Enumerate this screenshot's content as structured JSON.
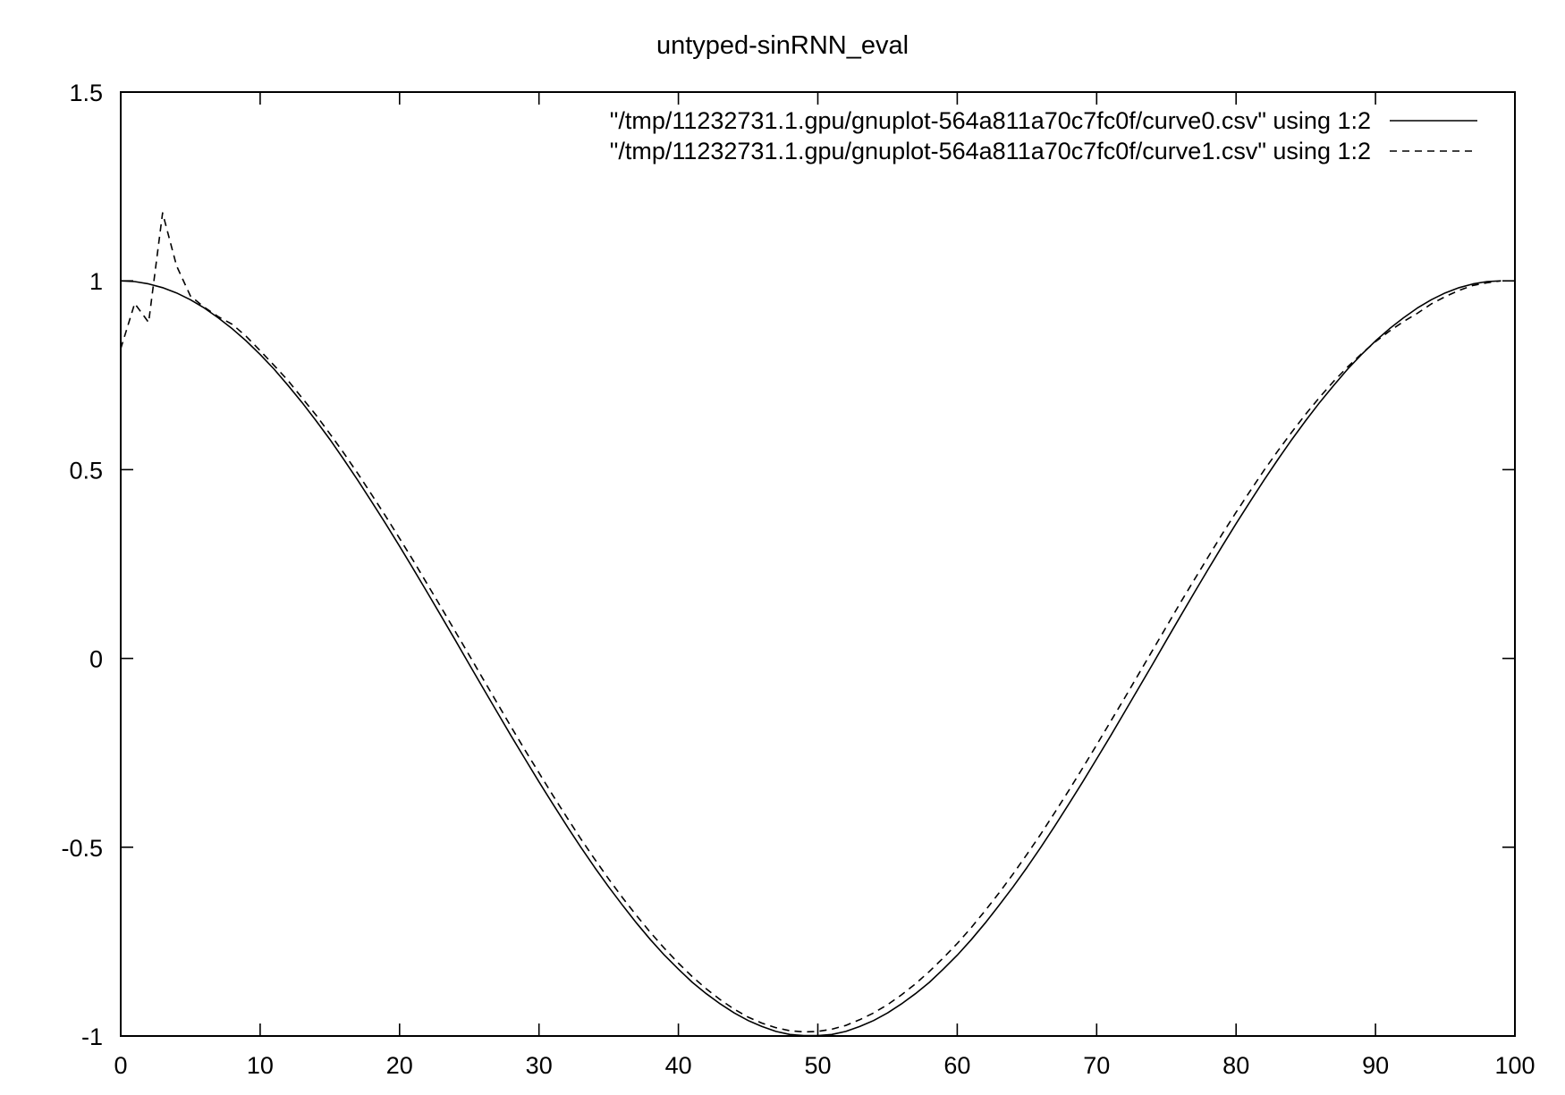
{
  "chart_data": {
    "type": "line",
    "title": "untyped-sinRNN_eval",
    "xlabel": "",
    "ylabel": "",
    "xlim": [
      0,
      100
    ],
    "ylim": [
      -1,
      1.5
    ],
    "xticks": [
      "0",
      "10",
      "20",
      "30",
      "40",
      "50",
      "60",
      "70",
      "80",
      "90",
      "100"
    ],
    "yticks": [
      "-1",
      "-0.5",
      "0",
      "0.5",
      "1",
      "1.5"
    ],
    "grid": false,
    "legend_position": "top-right",
    "series": [
      {
        "name": "\"/tmp/11232731.1.gpu/gnuplot-564a811a70c7fc0f/curve0.csv\" using 1:2",
        "style": "solid",
        "formula_points": "cos(2*pi*x/99) sampled at x = 0..99",
        "x": [
          0,
          1,
          2,
          3,
          4,
          5,
          6,
          7,
          8,
          9,
          10,
          11,
          12,
          13,
          14,
          15,
          16,
          17,
          18,
          19,
          20,
          21,
          22,
          23,
          24,
          25,
          26,
          27,
          28,
          29,
          30,
          31,
          32,
          33,
          34,
          35,
          36,
          37,
          38,
          39,
          40,
          41,
          42,
          43,
          44,
          45,
          46,
          47,
          48,
          49,
          50,
          51,
          52,
          53,
          54,
          55,
          56,
          57,
          58,
          59,
          60,
          61,
          62,
          63,
          64,
          65,
          66,
          67,
          68,
          69,
          70,
          71,
          72,
          73,
          74,
          75,
          76,
          77,
          78,
          79,
          80,
          81,
          82,
          83,
          84,
          85,
          86,
          87,
          88,
          89,
          90,
          91,
          92,
          93,
          94,
          95,
          96,
          97,
          98,
          99
        ],
        "values": [
          1.0,
          0.998,
          0.992,
          0.982,
          0.968,
          0.95,
          0.928,
          0.902,
          0.873,
          0.841,
          0.805,
          0.766,
          0.723,
          0.678,
          0.63,
          0.58,
          0.527,
          0.472,
          0.415,
          0.357,
          0.297,
          0.236,
          0.174,
          0.111,
          0.048,
          -0.016,
          -0.079,
          -0.142,
          -0.205,
          -0.266,
          -0.327,
          -0.386,
          -0.444,
          -0.5,
          -0.554,
          -0.605,
          -0.654,
          -0.701,
          -0.745,
          -0.786,
          -0.823,
          -0.858,
          -0.888,
          -0.915,
          -0.939,
          -0.959,
          -0.975,
          -0.988,
          -0.996,
          -0.999,
          -0.999,
          -0.996,
          -0.988,
          -0.975,
          -0.959,
          -0.939,
          -0.915,
          -0.888,
          -0.858,
          -0.823,
          -0.786,
          -0.745,
          -0.701,
          -0.654,
          -0.605,
          -0.554,
          -0.5,
          -0.444,
          -0.386,
          -0.327,
          -0.266,
          -0.205,
          -0.142,
          -0.079,
          -0.016,
          0.048,
          0.111,
          0.174,
          0.236,
          0.297,
          0.357,
          0.415,
          0.472,
          0.527,
          0.58,
          0.63,
          0.678,
          0.723,
          0.766,
          0.805,
          0.841,
          0.873,
          0.902,
          0.928,
          0.95,
          0.968,
          0.982,
          0.992,
          0.998,
          1.0
        ]
      },
      {
        "name": "\"/tmp/11232731.1.gpu/gnuplot-564a811a70c7fc0f/curve1.csv\" using 1:2",
        "style": "dashed",
        "x": [
          0,
          1,
          2,
          3,
          4,
          5,
          6,
          7,
          8,
          9,
          10,
          11,
          12,
          13,
          14,
          15,
          16,
          17,
          18,
          19,
          20,
          21,
          22,
          23,
          24,
          25,
          26,
          27,
          28,
          29,
          30,
          31,
          32,
          33,
          34,
          35,
          36,
          37,
          38,
          39,
          40,
          41,
          42,
          43,
          44,
          45,
          46,
          47,
          48,
          49,
          50,
          51,
          52,
          53,
          54,
          55,
          56,
          57,
          58,
          59,
          60,
          61,
          62,
          63,
          64,
          65,
          66,
          67,
          68,
          69,
          70,
          71,
          72,
          73,
          74,
          75,
          76,
          77,
          78,
          79,
          80,
          81,
          82,
          83,
          84,
          85,
          86,
          87,
          88,
          89,
          90,
          91,
          92,
          93,
          94,
          95,
          96,
          97,
          98,
          99
        ],
        "values": [
          0.82,
          0.94,
          0.89,
          1.18,
          1.04,
          0.96,
          0.93,
          0.905,
          0.885,
          0.853,
          0.815,
          0.776,
          0.736,
          0.69,
          0.645,
          0.595,
          0.544,
          0.49,
          0.434,
          0.377,
          0.318,
          0.258,
          0.196,
          0.134,
          0.071,
          0.008,
          -0.055,
          -0.118,
          -0.181,
          -0.243,
          -0.303,
          -0.363,
          -0.421,
          -0.478,
          -0.532,
          -0.584,
          -0.634,
          -0.681,
          -0.726,
          -0.768,
          -0.807,
          -0.843,
          -0.875,
          -0.904,
          -0.929,
          -0.95,
          -0.966,
          -0.978,
          -0.986,
          -0.989,
          -0.988,
          -0.982,
          -0.972,
          -0.957,
          -0.939,
          -0.917,
          -0.891,
          -0.862,
          -0.829,
          -0.793,
          -0.755,
          -0.713,
          -0.668,
          -0.621,
          -0.571,
          -0.519,
          -0.465,
          -0.408,
          -0.35,
          -0.29,
          -0.229,
          -0.167,
          -0.105,
          -0.042,
          0.021,
          0.084,
          0.147,
          0.208,
          0.269,
          0.329,
          0.387,
          0.443,
          0.498,
          0.55,
          0.6,
          0.647,
          0.692,
          0.734,
          0.772,
          0.807,
          0.839,
          0.867,
          0.892,
          0.914,
          0.939,
          0.958,
          0.975,
          0.988,
          0.995,
          1.0
        ]
      }
    ]
  }
}
